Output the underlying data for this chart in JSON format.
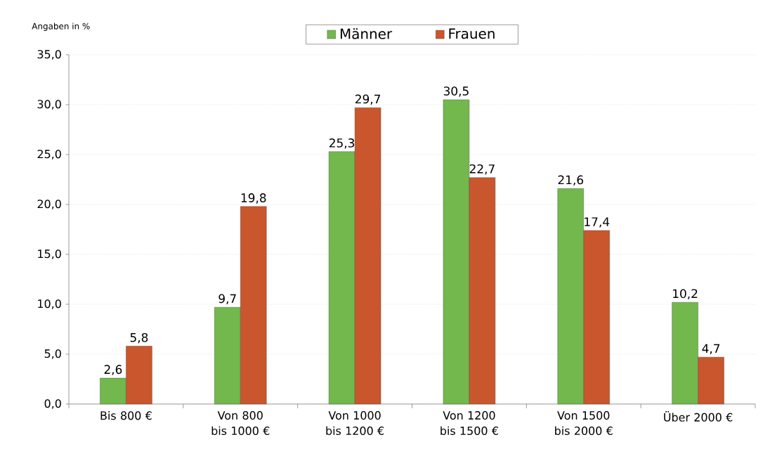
{
  "chart_data": {
    "type": "bar",
    "ylabel": "Angaben in %",
    "categories": [
      "Bis 800 €",
      "Von 800 bis 1000 €",
      "Von 1000 bis 1200 €",
      "Von 1200 bis 1500 €",
      "Von 1500 bis 2000 €",
      "Über 2000 €"
    ],
    "series": [
      {
        "name": "Männer",
        "color": "#72b84c",
        "values": [
          2.6,
          9.7,
          25.3,
          30.5,
          21.6,
          10.2
        ],
        "value_labels": [
          "2,6",
          "9,7",
          "25,3",
          "30,5",
          "21,6",
          "10,2"
        ]
      },
      {
        "name": "Frauen",
        "color": "#c9562c",
        "values": [
          5.8,
          19.8,
          29.7,
          22.7,
          17.4,
          4.7
        ],
        "value_labels": [
          "5,8",
          "19,8",
          "29,7",
          "22,7",
          "17,4",
          "4,7"
        ]
      }
    ],
    "ylim": [
      0,
      35
    ],
    "yticks": [
      {
        "value": 0,
        "label": "0,0"
      },
      {
        "value": 5,
        "label": "5,0"
      },
      {
        "value": 10,
        "label": "10,0"
      },
      {
        "value": 15,
        "label": "15,0"
      },
      {
        "value": 20,
        "label": "20,0"
      },
      {
        "value": 25,
        "label": "25,0"
      },
      {
        "value": 30,
        "label": "30,0"
      },
      {
        "value": 35,
        "label": "35,0"
      }
    ],
    "grid": "y",
    "legend": "top"
  }
}
